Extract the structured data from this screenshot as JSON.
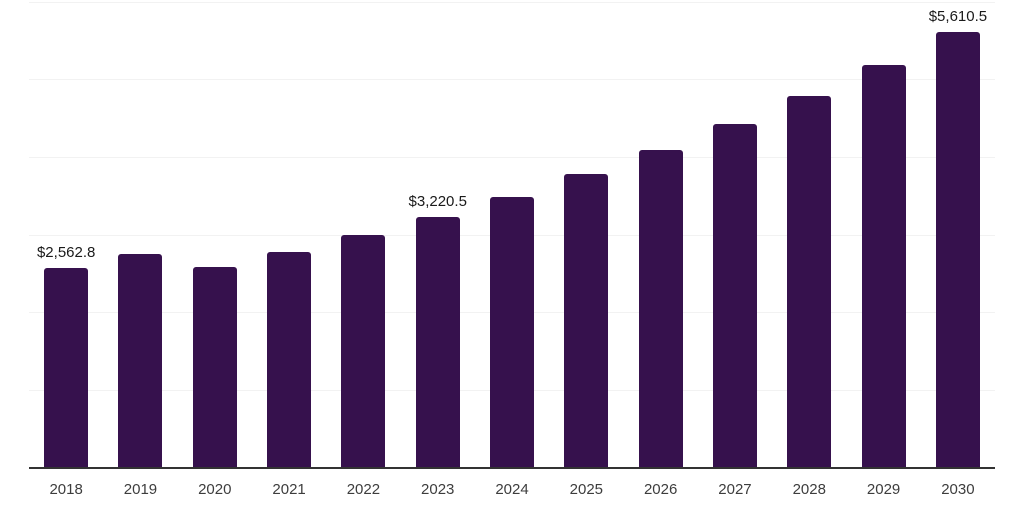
{
  "chart_data": {
    "type": "bar",
    "title": "",
    "xlabel": "",
    "ylabel": "",
    "categories": [
      "2018",
      "2019",
      "2020",
      "2021",
      "2022",
      "2023",
      "2024",
      "2025",
      "2026",
      "2027",
      "2028",
      "2029",
      "2030"
    ],
    "values": [
      2562.8,
      2755,
      2580,
      2775,
      2990,
      3220.5,
      3485,
      3780,
      4090,
      4425,
      4790,
      5185,
      5610.5
    ],
    "value_labels": {
      "0": "$2,562.8",
      "5": "$3,220.5",
      "12": "$5,610.5"
    },
    "ylim": [
      0,
      6000
    ],
    "grid": "horizontal",
    "grid_interval": 1000,
    "y_axis_tick_labels_visible": false,
    "legend": "none"
  },
  "style": {
    "bar_color": "#36114d",
    "axis_color": "#333333",
    "grid_color": "#f2f2f2",
    "value_label_color": "#1a1a1a",
    "tick_label_color": "#3d3d3d",
    "background": "#ffffff"
  }
}
